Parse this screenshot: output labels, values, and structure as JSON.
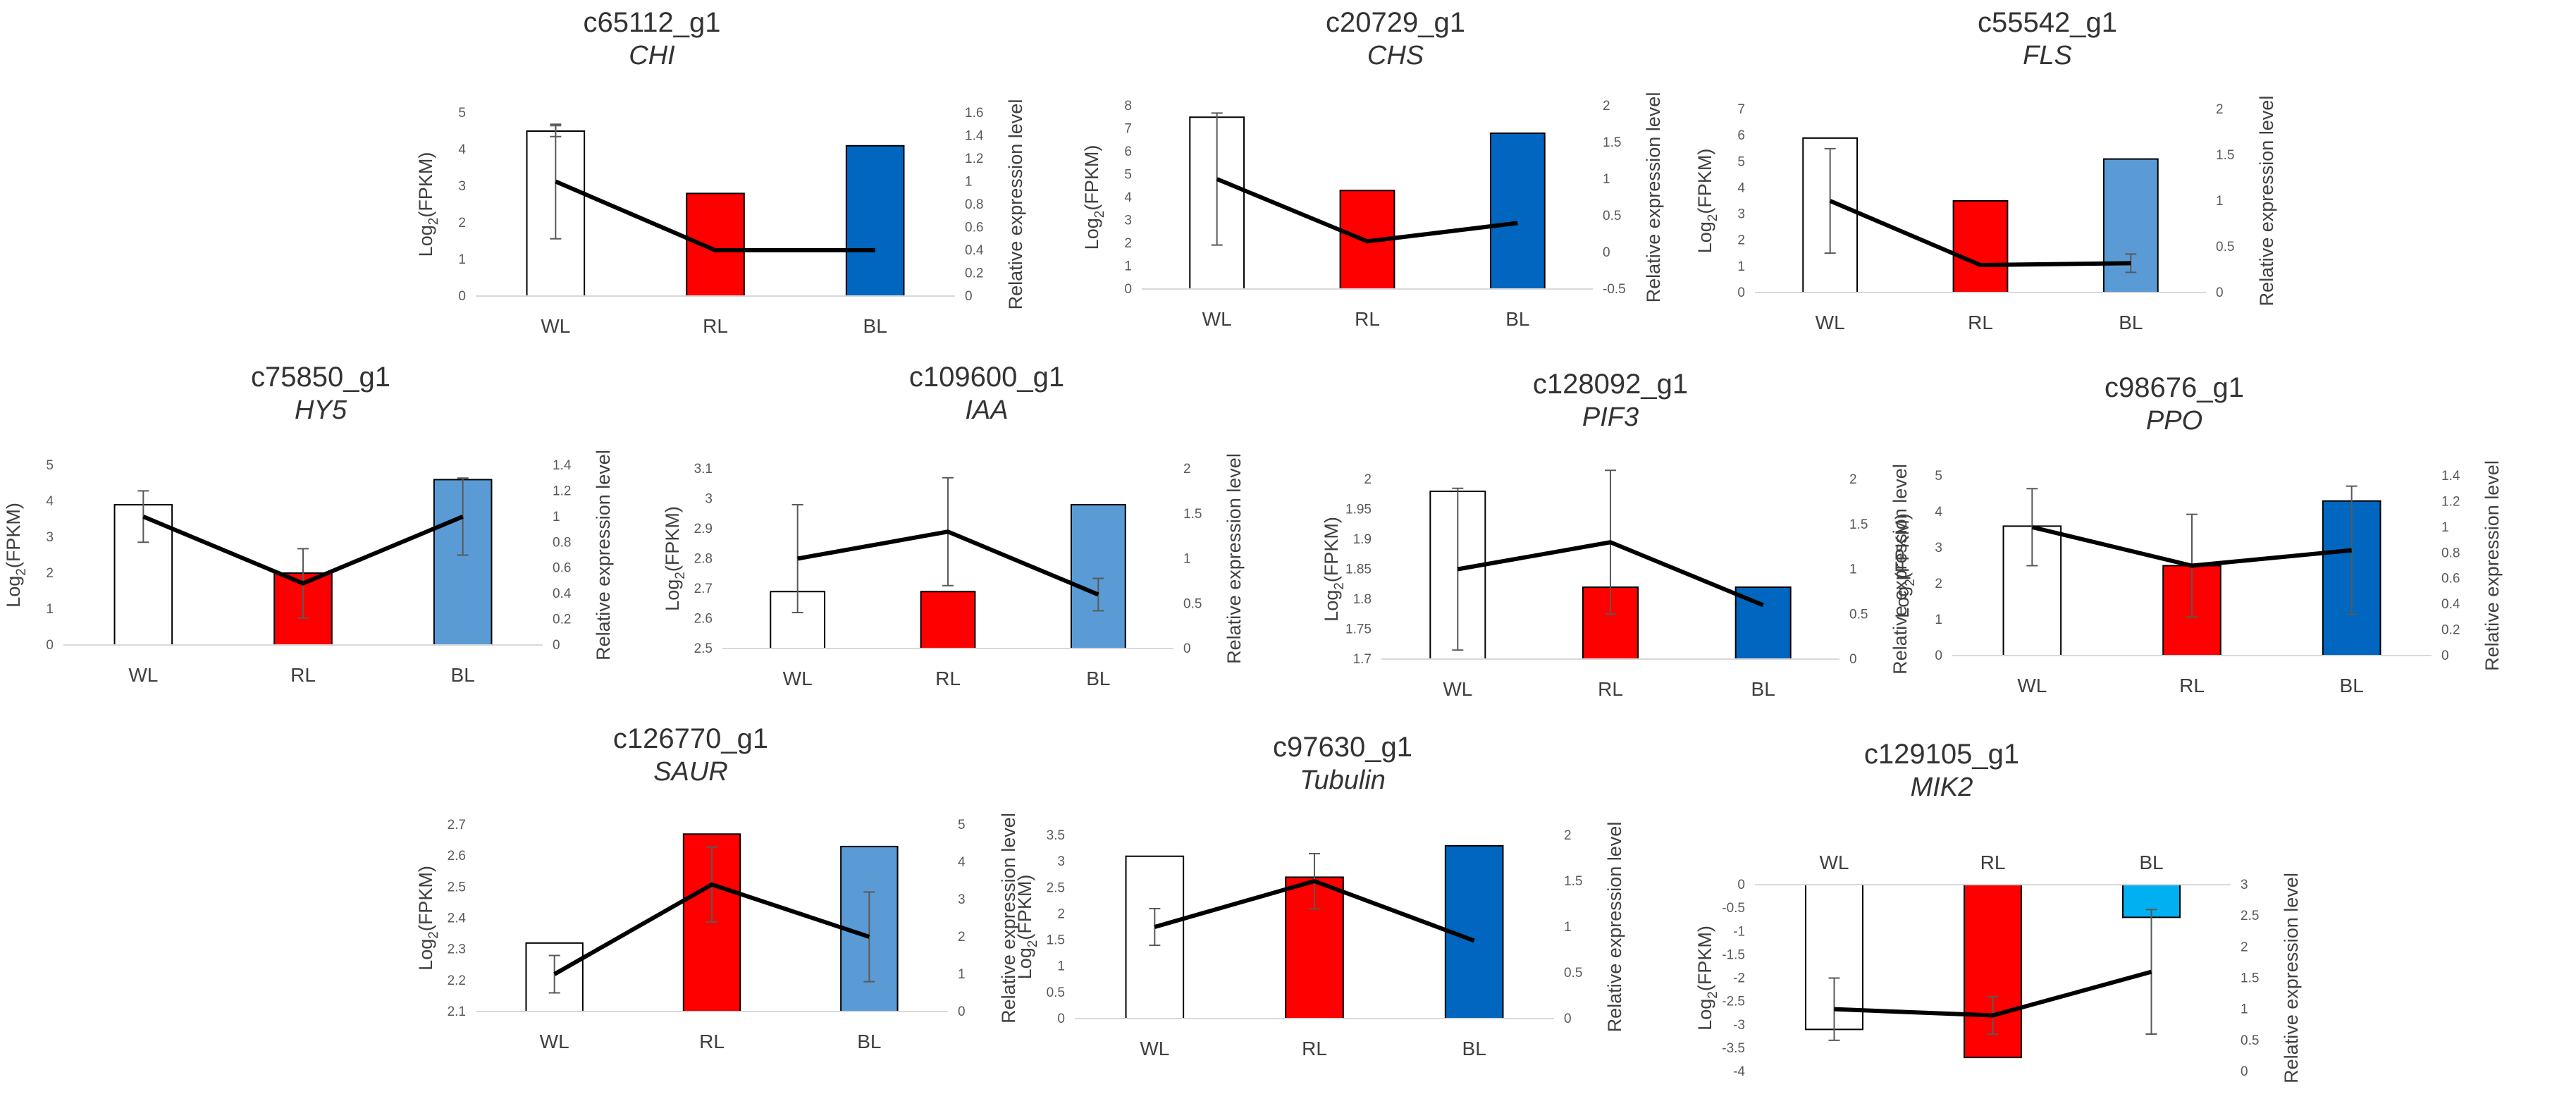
{
  "chart_data": [
    {
      "type": "bar+line",
      "title": "c65112_g1",
      "subtitle": "CHI",
      "categories": [
        "WL",
        "RL",
        "BL"
      ],
      "bar_colors": [
        "#ffffff",
        "#ff0000",
        "#0066bf"
      ],
      "ylabel": "Log2(FPKM)",
      "ylabel_base": "Log",
      "ylabel_sub": "2",
      "ylabel_rest": "(FPKM)",
      "y2label": "Relative expression level",
      "ylim": [
        0,
        5
      ],
      "yticks": [
        "0",
        "1",
        "2",
        "3",
        "4",
        "5"
      ],
      "y2lim": [
        0,
        1.6
      ],
      "y2ticks": [
        "0",
        "0.2",
        "0.4",
        "0.6",
        "0.8",
        "1",
        "1.2",
        "1.4",
        "1.6"
      ],
      "series": [
        {
          "name": "Log2(FPKM)",
          "axis": "left",
          "values": [
            4.5,
            2.8,
            4.1
          ],
          "errors": [
            0.15,
            null,
            null
          ]
        },
        {
          "name": "Relative expression level",
          "axis": "right",
          "values": [
            1.0,
            0.4,
            0.4
          ],
          "errors": [
            0.5,
            null,
            null
          ]
        }
      ]
    },
    {
      "type": "bar+line",
      "title": "c20729_g1",
      "subtitle": "CHS",
      "categories": [
        "WL",
        "RL",
        "BL"
      ],
      "bar_colors": [
        "#ffffff",
        "#ff0000",
        "#0066bf"
      ],
      "ylabel": "Log2(FPKM)",
      "ylabel_base": "Log",
      "ylabel_sub": "2",
      "ylabel_rest": "(FPKM)",
      "y2label": "Relative expression level",
      "ylim": [
        0,
        8
      ],
      "yticks": [
        "0",
        "1",
        "2",
        "3",
        "4",
        "5",
        "6",
        "7",
        "8"
      ],
      "y2lim": [
        -0.5,
        2
      ],
      "y2ticks": [
        "-0.5",
        "0",
        "0.5",
        "1",
        "1.5",
        "2"
      ],
      "series": [
        {
          "name": "Log2(FPKM)",
          "axis": "left",
          "values": [
            7.5,
            4.3,
            6.8
          ],
          "errors": [
            null,
            null,
            null
          ]
        },
        {
          "name": "Relative expression level",
          "axis": "right",
          "values": [
            1.0,
            0.15,
            0.4
          ],
          "errors": [
            0.9,
            null,
            null
          ]
        }
      ]
    },
    {
      "type": "bar+line",
      "title": "c55542_g1",
      "subtitle": "FLS",
      "categories": [
        "WL",
        "RL",
        "BL"
      ],
      "bar_colors": [
        "#ffffff",
        "#ff0000",
        "#5b9bd5"
      ],
      "ylabel": "Log2(FPKM)",
      "ylabel_base": "Log",
      "ylabel_sub": "2",
      "ylabel_rest": "(FPKM)",
      "y2label": "Relative expression level",
      "ylim": [
        0,
        7
      ],
      "yticks": [
        "0",
        "1",
        "2",
        "3",
        "4",
        "5",
        "6",
        "7"
      ],
      "y2lim": [
        0,
        2
      ],
      "y2ticks": [
        "0",
        "0.5",
        "1",
        "1.5",
        "2"
      ],
      "series": [
        {
          "name": "Log2(FPKM)",
          "axis": "left",
          "values": [
            5.9,
            3.5,
            5.1
          ],
          "errors": [
            null,
            null,
            null
          ]
        },
        {
          "name": "Relative expression level",
          "axis": "right",
          "values": [
            1.0,
            0.3,
            0.32
          ],
          "errors": [
            0.57,
            null,
            0.1
          ]
        }
      ]
    },
    {
      "type": "bar+line",
      "title": "c75850_g1",
      "subtitle": "HY5",
      "categories": [
        "WL",
        "RL",
        "BL"
      ],
      "bar_colors": [
        "#ffffff",
        "#ff0000",
        "#5b9bd5"
      ],
      "ylabel": "Log2(FPKM)",
      "ylabel_base": "Log",
      "ylabel_sub": "2",
      "ylabel_rest": "(FPKM)",
      "y2label": "Relative expression level",
      "ylim": [
        0,
        5
      ],
      "yticks": [
        "0",
        "1",
        "2",
        "3",
        "4",
        "5"
      ],
      "y2lim": [
        0,
        1.4
      ],
      "y2ticks": [
        "0",
        "0.2",
        "0.4",
        "0.6",
        "0.8",
        "1",
        "1.2",
        "1.4"
      ],
      "series": [
        {
          "name": "Log2(FPKM)",
          "axis": "left",
          "values": [
            3.9,
            2.0,
            4.6
          ],
          "errors": [
            null,
            null,
            null
          ]
        },
        {
          "name": "Relative expression level",
          "axis": "right",
          "values": [
            1.0,
            0.48,
            1.0
          ],
          "errors": [
            0.2,
            0.27,
            0.3
          ]
        }
      ]
    },
    {
      "type": "bar+line",
      "title": "c109600_g1",
      "subtitle": "IAA",
      "categories": [
        "WL",
        "RL",
        "BL"
      ],
      "bar_colors": [
        "#ffffff",
        "#ff0000",
        "#5b9bd5"
      ],
      "ylabel": "Log2(FPKM)",
      "ylabel_base": "Log",
      "ylabel_sub": "2",
      "ylabel_rest": "(FPKM)",
      "y2label": "Relative expression level",
      "ylim": [
        2.5,
        3.1
      ],
      "yticks": [
        "2.5",
        "2.6",
        "2.7",
        "2.8",
        "2.9",
        "3",
        "3.1"
      ],
      "y2lim": [
        0,
        2
      ],
      "y2ticks": [
        "0",
        "0.5",
        "1",
        "1.5",
        "2"
      ],
      "series": [
        {
          "name": "Log2(FPKM)",
          "axis": "left",
          "values": [
            2.69,
            2.69,
            2.98
          ],
          "errors": [
            null,
            null,
            null
          ]
        },
        {
          "name": "Relative expression level",
          "axis": "right",
          "values": [
            1.0,
            1.3,
            0.6
          ],
          "errors": [
            0.6,
            0.6,
            0.18
          ]
        }
      ]
    },
    {
      "type": "bar+line",
      "title": "c128092_g1",
      "subtitle": "PIF3",
      "categories": [
        "WL",
        "RL",
        "BL"
      ],
      "bar_colors": [
        "#ffffff",
        "#ff0000",
        "#0066bf"
      ],
      "ylabel": "Log2(FPKM)",
      "ylabel_base": "Log",
      "ylabel_sub": "2",
      "ylabel_rest": "(FPKM)",
      "y2label": "Relative expression level",
      "ylim": [
        1.7,
        2
      ],
      "yticks": [
        "1.7",
        "1.75",
        "1.8",
        "1.85",
        "1.9",
        "1.95",
        "2"
      ],
      "y2lim": [
        0,
        2
      ],
      "y2ticks": [
        "0",
        "0.5",
        "1",
        "1.5",
        "2"
      ],
      "series": [
        {
          "name": "Log2(FPKM)",
          "axis": "left",
          "values": [
            1.98,
            1.82,
            1.82
          ],
          "errors": [
            null,
            null,
            null
          ]
        },
        {
          "name": "Relative expression level",
          "axis": "right",
          "values": [
            1.0,
            1.3,
            0.6
          ],
          "errors": [
            0.9,
            0.8,
            null
          ]
        }
      ]
    },
    {
      "type": "bar+line",
      "title": "c98676_g1",
      "subtitle": "PPO",
      "categories": [
        "WL",
        "RL",
        "BL"
      ],
      "bar_colors": [
        "#ffffff",
        "#ff0000",
        "#0066bf"
      ],
      "ylabel": "Log2(FPKM)",
      "ylabel_base": "Log",
      "ylabel_sub": "2",
      "ylabel_rest": "(FPKM)",
      "y2label": "Relative expression level",
      "ylim": [
        0,
        5
      ],
      "yticks": [
        "0",
        "1",
        "2",
        "3",
        "4",
        "5"
      ],
      "y2lim": [
        0,
        1.4
      ],
      "y2ticks": [
        "0",
        "0.2",
        "0.4",
        "0.6",
        "0.8",
        "1",
        "1.2",
        "1.4"
      ],
      "series": [
        {
          "name": "Log2(FPKM)",
          "axis": "left",
          "values": [
            3.6,
            2.5,
            4.3
          ],
          "errors": [
            null,
            null,
            null
          ]
        },
        {
          "name": "Relative expression level",
          "axis": "right",
          "values": [
            1.0,
            0.7,
            0.82
          ],
          "errors": [
            0.3,
            0.4,
            0.5
          ]
        }
      ]
    },
    {
      "type": "bar+line",
      "title": "c126770_g1",
      "subtitle": "SAUR",
      "categories": [
        "WL",
        "RL",
        "BL"
      ],
      "bar_colors": [
        "#ffffff",
        "#ff0000",
        "#5b9bd5"
      ],
      "ylabel": "Log2(FPKM)",
      "ylabel_base": "Log",
      "ylabel_sub": "2",
      "ylabel_rest": "(FPKM)",
      "y2label": "Relative expression level",
      "ylim": [
        2.1,
        2.7
      ],
      "yticks": [
        "2.1",
        "2.2",
        "2.3",
        "2.4",
        "2.5",
        "2.6",
        "2.7"
      ],
      "y2lim": [
        0,
        5
      ],
      "y2ticks": [
        "0",
        "1",
        "2",
        "3",
        "4",
        "5"
      ],
      "series": [
        {
          "name": "Log2(FPKM)",
          "axis": "left",
          "values": [
            2.32,
            2.67,
            2.63
          ],
          "errors": [
            null,
            null,
            null
          ]
        },
        {
          "name": "Relative expression level",
          "axis": "right",
          "values": [
            1.0,
            3.4,
            2.0
          ],
          "errors": [
            0.5,
            1.0,
            1.2
          ]
        }
      ]
    },
    {
      "type": "bar+line",
      "title": "c97630_g1",
      "subtitle": "Tubulin",
      "categories": [
        "WL",
        "RL",
        "BL"
      ],
      "bar_colors": [
        "#ffffff",
        "#ff0000",
        "#0066bf"
      ],
      "ylabel": "Log2(FPKM)",
      "ylabel_base": "Log",
      "ylabel_sub": "2",
      "ylabel_rest": "(FPKM)",
      "y2label": "Relative expression level",
      "ylim": [
        0,
        3.5
      ],
      "yticks": [
        "0",
        "0.5",
        "1",
        "1.5",
        "2",
        "2.5",
        "3",
        "3.5"
      ],
      "y2lim": [
        0,
        2
      ],
      "y2ticks": [
        "0",
        "0.5",
        "1",
        "1.5",
        "2"
      ],
      "series": [
        {
          "name": "Log2(FPKM)",
          "axis": "left",
          "values": [
            3.1,
            2.7,
            3.3
          ],
          "errors": [
            null,
            null,
            null
          ]
        },
        {
          "name": "Relative expression level",
          "axis": "right",
          "values": [
            1.0,
            1.5,
            0.85
          ],
          "errors": [
            0.2,
            0.3,
            null
          ]
        }
      ]
    },
    {
      "type": "bar+line",
      "title": "c129105_g1",
      "subtitle": "MIK2",
      "categories": [
        "WL",
        "RL",
        "BL"
      ],
      "bar_colors": [
        "#ffffff",
        "#ff0000",
        "#00b0f0"
      ],
      "category_axis_position": "top",
      "ylabel": "Log2(FPKM)",
      "ylabel_base": "Log",
      "ylabel_sub": "2",
      "ylabel_rest": "(FPKM)",
      "y2label": "Relative expression level",
      "ylim": [
        -4,
        0
      ],
      "yticks": [
        "-4",
        "-3.5",
        "-3",
        "-2.5",
        "-2",
        "-1.5",
        "-1",
        "-0.5",
        "0"
      ],
      "y2lim": [
        0,
        3
      ],
      "y2ticks": [
        "0",
        "0.5",
        "1",
        "1.5",
        "2",
        "2.5",
        "3"
      ],
      "series": [
        {
          "name": "Log2(FPKM)",
          "axis": "left",
          "values": [
            -3.1,
            -3.7,
            -0.7
          ],
          "errors": [
            null,
            null,
            null
          ]
        },
        {
          "name": "Relative expression level",
          "axis": "right",
          "values": [
            1.0,
            0.9,
            1.6
          ],
          "errors": [
            0.5,
            0.3,
            1.0
          ]
        }
      ]
    }
  ]
}
